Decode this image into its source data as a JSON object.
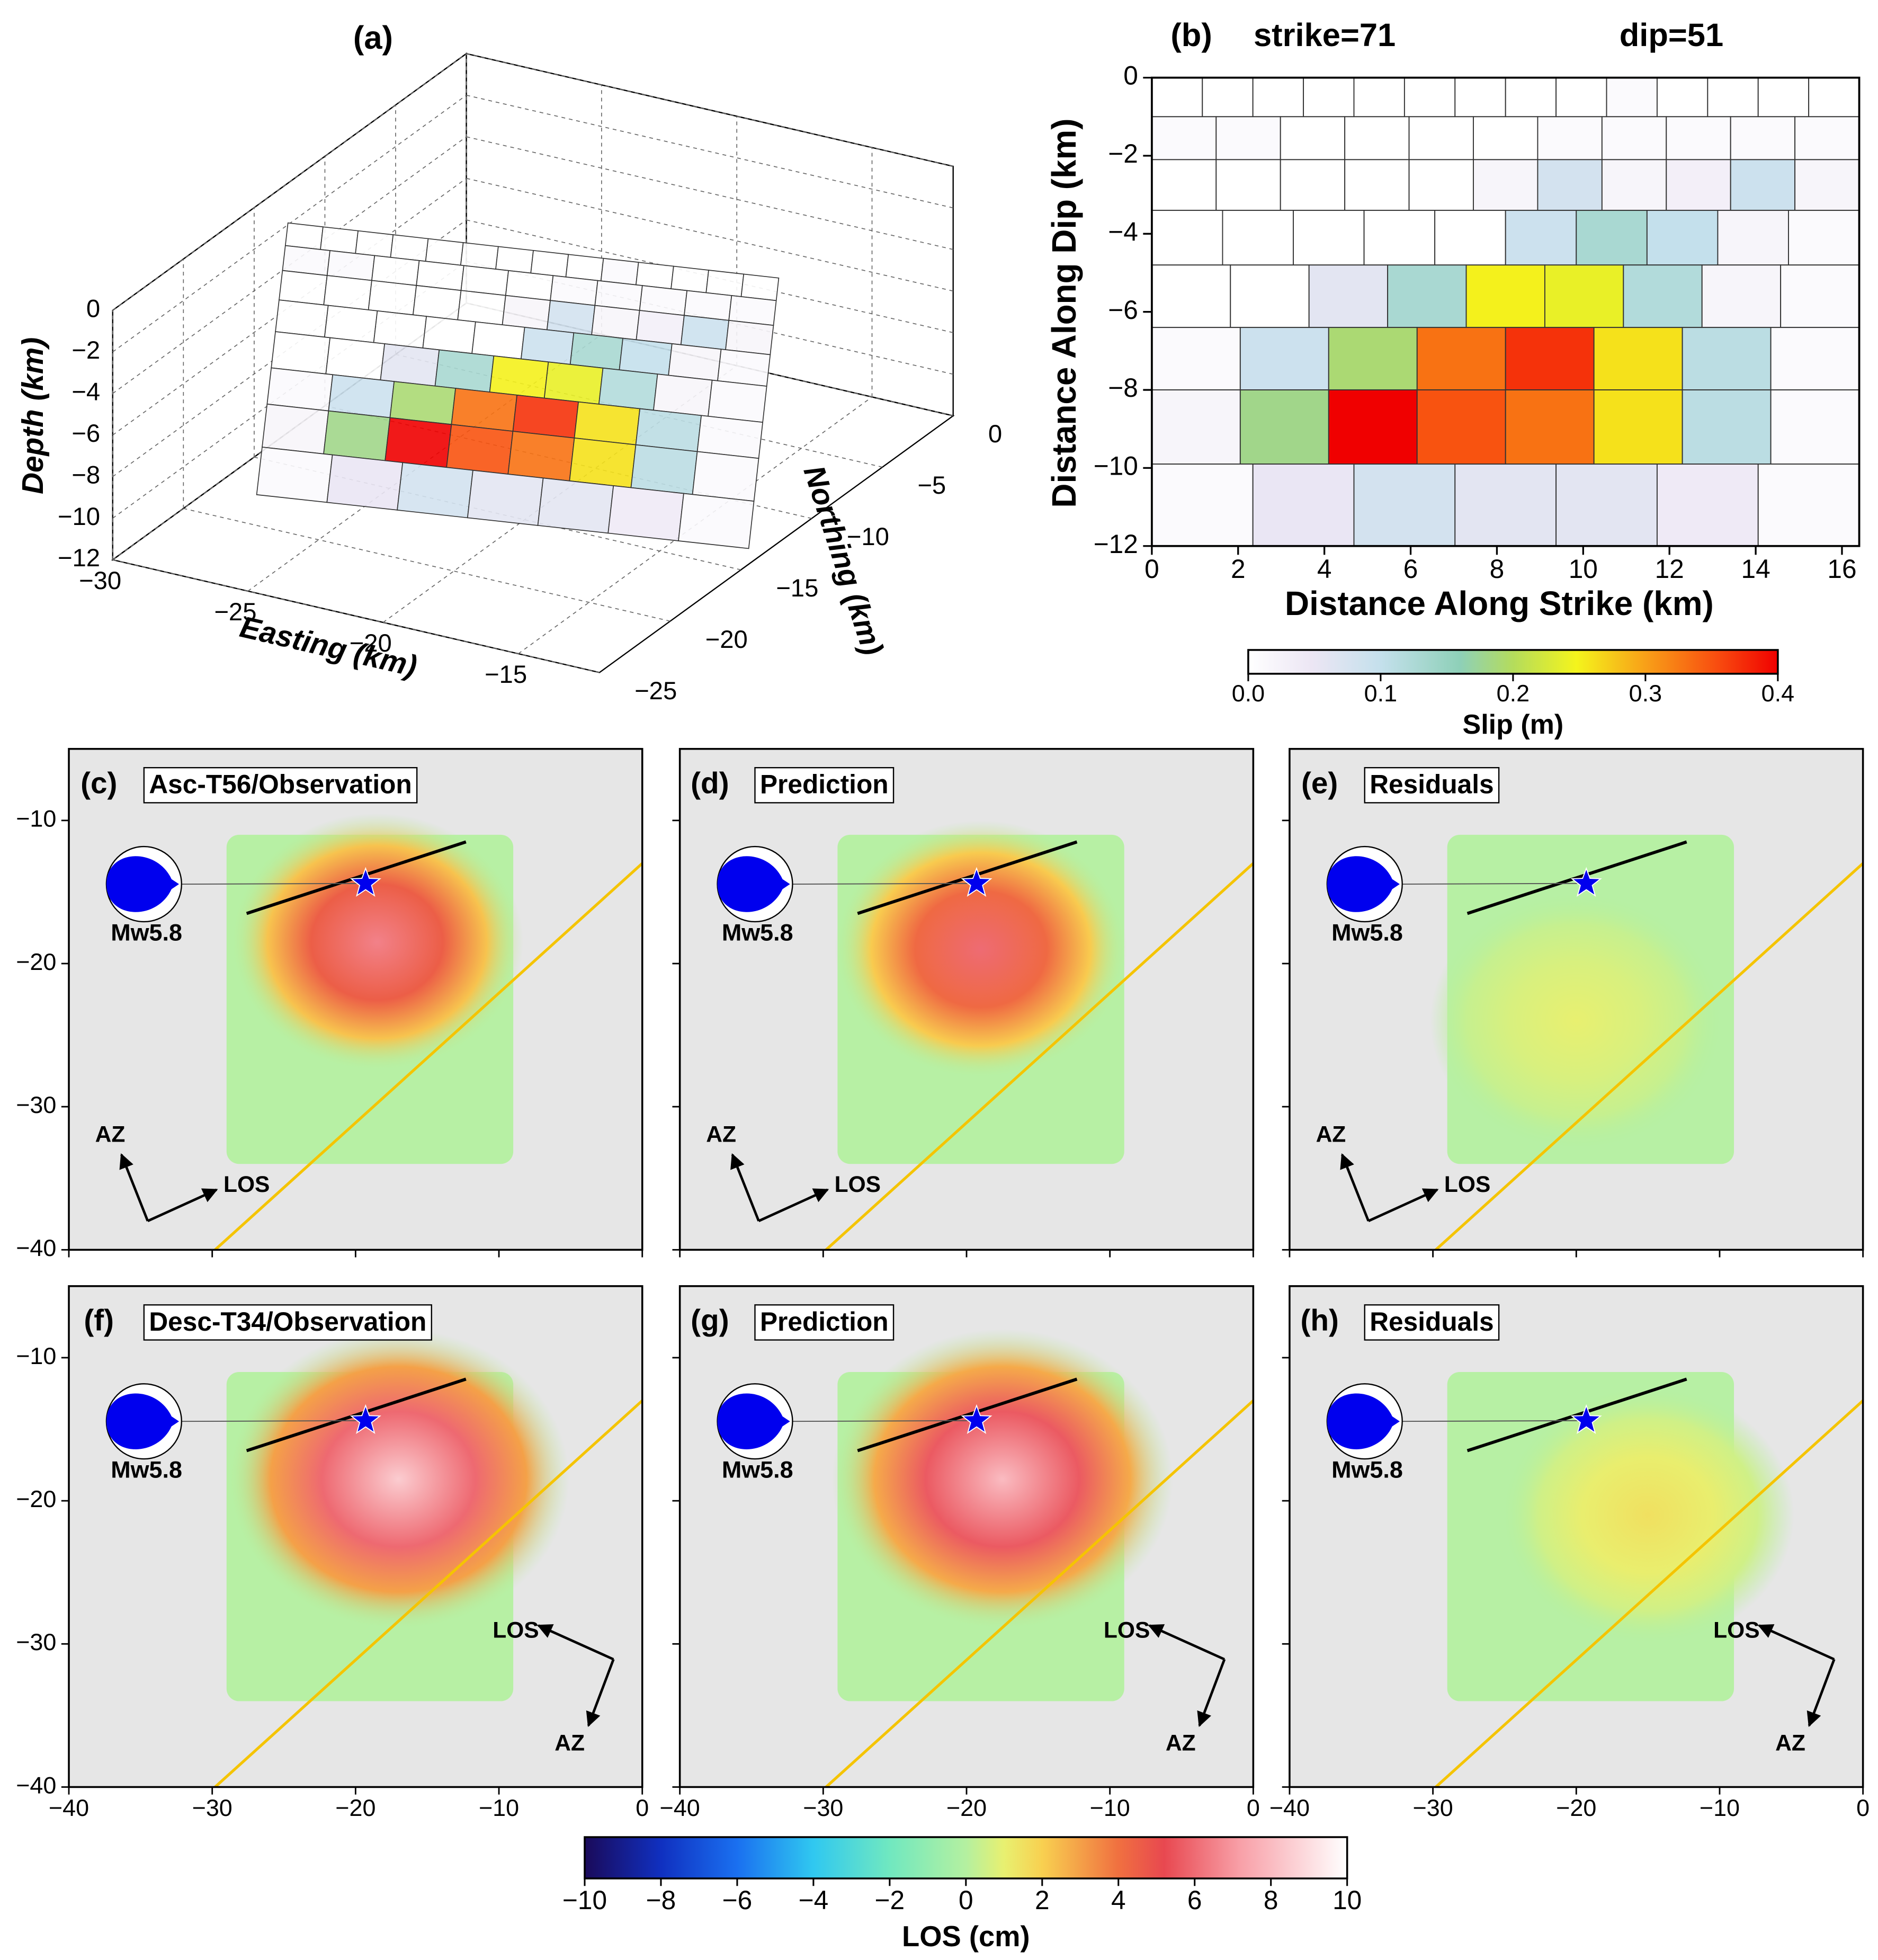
{
  "chart_data": [
    {
      "type": "fault3d",
      "title": "(a)",
      "xlabel": "Easting (km)",
      "ylabel": "Northing (km)",
      "zlabel": "Depth (km)",
      "xlim": [
        -30,
        -12
      ],
      "ylim": [
        -25,
        0
      ],
      "zlim": [
        -12,
        0
      ],
      "xticks": [
        {
          "value": -30,
          "label": "−30"
        },
        {
          "value": -25,
          "label": "−25"
        },
        {
          "value": -20,
          "label": "−20"
        },
        {
          "value": -15,
          "label": "−15"
        }
      ],
      "yticks": [
        0,
        {
          "value": -5,
          "label": "−5"
        },
        {
          "value": -10,
          "label": "−10"
        },
        {
          "value": -15,
          "label": "−15"
        },
        {
          "value": -20,
          "label": "−20"
        },
        {
          "value": -25,
          "label": "−25"
        }
      ],
      "zticks": [
        0,
        {
          "value": -2,
          "label": "−2"
        },
        {
          "value": -4,
          "label": "−4"
        },
        {
          "value": -6,
          "label": "−6"
        },
        {
          "value": -8,
          "label": "−8"
        },
        {
          "value": -10,
          "label": "−10"
        },
        {
          "value": -12,
          "label": "−12"
        }
      ]
    },
    {
      "type": "slip",
      "title": "(b)",
      "annotations": [
        "strike=71",
        "dip=51"
      ],
      "xlabel": "Distance Along Strike (km)",
      "ylabel": "Distance Along Dip (km)",
      "xlim": [
        0,
        16.4
      ],
      "ylim": [
        -12,
        0
      ],
      "xticks": [
        0,
        2,
        4,
        6,
        8,
        10,
        12,
        14,
        16
      ],
      "yticks": [
        0,
        {
          "value": -2,
          "label": "−2"
        },
        {
          "value": -4,
          "label": "−4"
        },
        {
          "value": -6,
          "label": "−6"
        },
        {
          "value": -8,
          "label": "−8"
        },
        {
          "value": -10,
          "label": "−10"
        },
        {
          "value": -12,
          "label": "−12"
        }
      ],
      "depth_edges": [
        0,
        -1,
        -2.1,
        -3.4,
        -4.8,
        -6.4,
        -8,
        -9.9,
        -12
      ],
      "slip": [
        [
          0,
          0,
          0,
          0,
          0,
          0,
          0,
          0,
          0,
          0.01,
          0,
          0,
          0,
          0
        ],
        [
          0.01,
          0.01,
          0,
          0,
          0,
          0,
          0.01,
          0.01,
          0.01,
          0.01,
          0.01
        ],
        [
          0,
          0,
          0,
          0,
          0,
          0.02,
          0.08,
          0.02,
          0.03,
          0.09,
          0.02
        ],
        [
          0,
          0,
          0,
          0,
          0,
          0.09,
          0.13,
          0.1,
          0.02,
          0.01
        ],
        [
          0,
          0,
          0.06,
          0.13,
          0.25,
          0.24,
          0.12,
          0.02,
          0.01
        ],
        [
          0.01,
          0.09,
          0.19,
          0.33,
          0.37,
          0.26,
          0.11,
          0.01
        ],
        [
          0.02,
          0.18,
          0.4,
          0.35,
          0.33,
          0.26,
          0.11,
          0.01
        ],
        [
          0.01,
          0.05,
          0.08,
          0.06,
          0.06,
          0.04,
          0.01
        ]
      ],
      "colorbar": {
        "label": "Slip (m)",
        "lim": [
          0,
          0.4
        ],
        "ticks": [
          {
            "value": 0,
            "label": "0.0"
          },
          0.1,
          0.2,
          0.3,
          0.4
        ]
      }
    },
    {
      "type": "los_maps",
      "xlim": [
        -40,
        0
      ],
      "ylim": [
        -40,
        -5
      ],
      "xticks": [
        {
          "value": -40,
          "label": "−40"
        },
        {
          "value": -30,
          "label": "−30"
        },
        {
          "value": -20,
          "label": "−20"
        },
        {
          "value": -10,
          "label": "−10"
        },
        0
      ],
      "yticks": [
        {
          "value": -10,
          "label": "−10"
        },
        {
          "value": -20,
          "label": "−20"
        },
        {
          "value": -30,
          "label": "−30"
        },
        {
          "value": -40,
          "label": "−40"
        }
      ],
      "fault_trace": {
        "x": [
          -27.6,
          -12.3
        ],
        "y": [
          -16.5,
          -11.5
        ]
      },
      "epicenter": {
        "x": -19.3,
        "y": -14.4
      },
      "yellow_line": {
        "x": [
          -29.8,
          0
        ],
        "y": [
          -40,
          -13
        ]
      },
      "data_extent": {
        "x": [
          -29,
          -9
        ],
        "y": [
          -34,
          -11
        ]
      },
      "magnitude_label": "Mw5.8",
      "az_label": "AZ",
      "los_label": "LOS",
      "panels": [
        {
          "label": "(c)",
          "title": "Asc-T56/Observation",
          "peak": {
            "x": -18.5,
            "y": -18.5,
            "los": 6.5,
            "radius": 6
          }
        },
        {
          "label": "(d)",
          "title": "Prediction",
          "peak": {
            "x": -19,
            "y": -19,
            "los": 6,
            "radius": 6
          }
        },
        {
          "label": "(e)",
          "title": "Residuals",
          "peak": {
            "x": -20,
            "y": -24,
            "los": 1,
            "radius": 6
          }
        },
        {
          "label": "(f)",
          "title": "Desc-T34/Observation",
          "peak": {
            "x": -17,
            "y": -18.5,
            "los": 8.5,
            "radius": 7
          }
        },
        {
          "label": "(g)",
          "title": "Prediction",
          "peak": {
            "x": -17.5,
            "y": -18.5,
            "los": 8,
            "radius": 7
          }
        },
        {
          "label": "(h)",
          "title": "Residuals",
          "peak": {
            "x": -15,
            "y": -21,
            "los": 1.5,
            "radius": 6
          }
        }
      ],
      "colorbar": {
        "label": "LOS (cm)",
        "lim": [
          -10,
          10
        ],
        "ticks": [
          {
            "value": -10,
            "label": "−10"
          },
          {
            "value": -8,
            "label": "−8"
          },
          {
            "value": -6,
            "label": "−6"
          },
          {
            "value": -4,
            "label": "−4"
          },
          {
            "value": -2,
            "label": "−2"
          },
          0,
          2,
          4,
          6,
          8,
          10
        ]
      }
    }
  ]
}
